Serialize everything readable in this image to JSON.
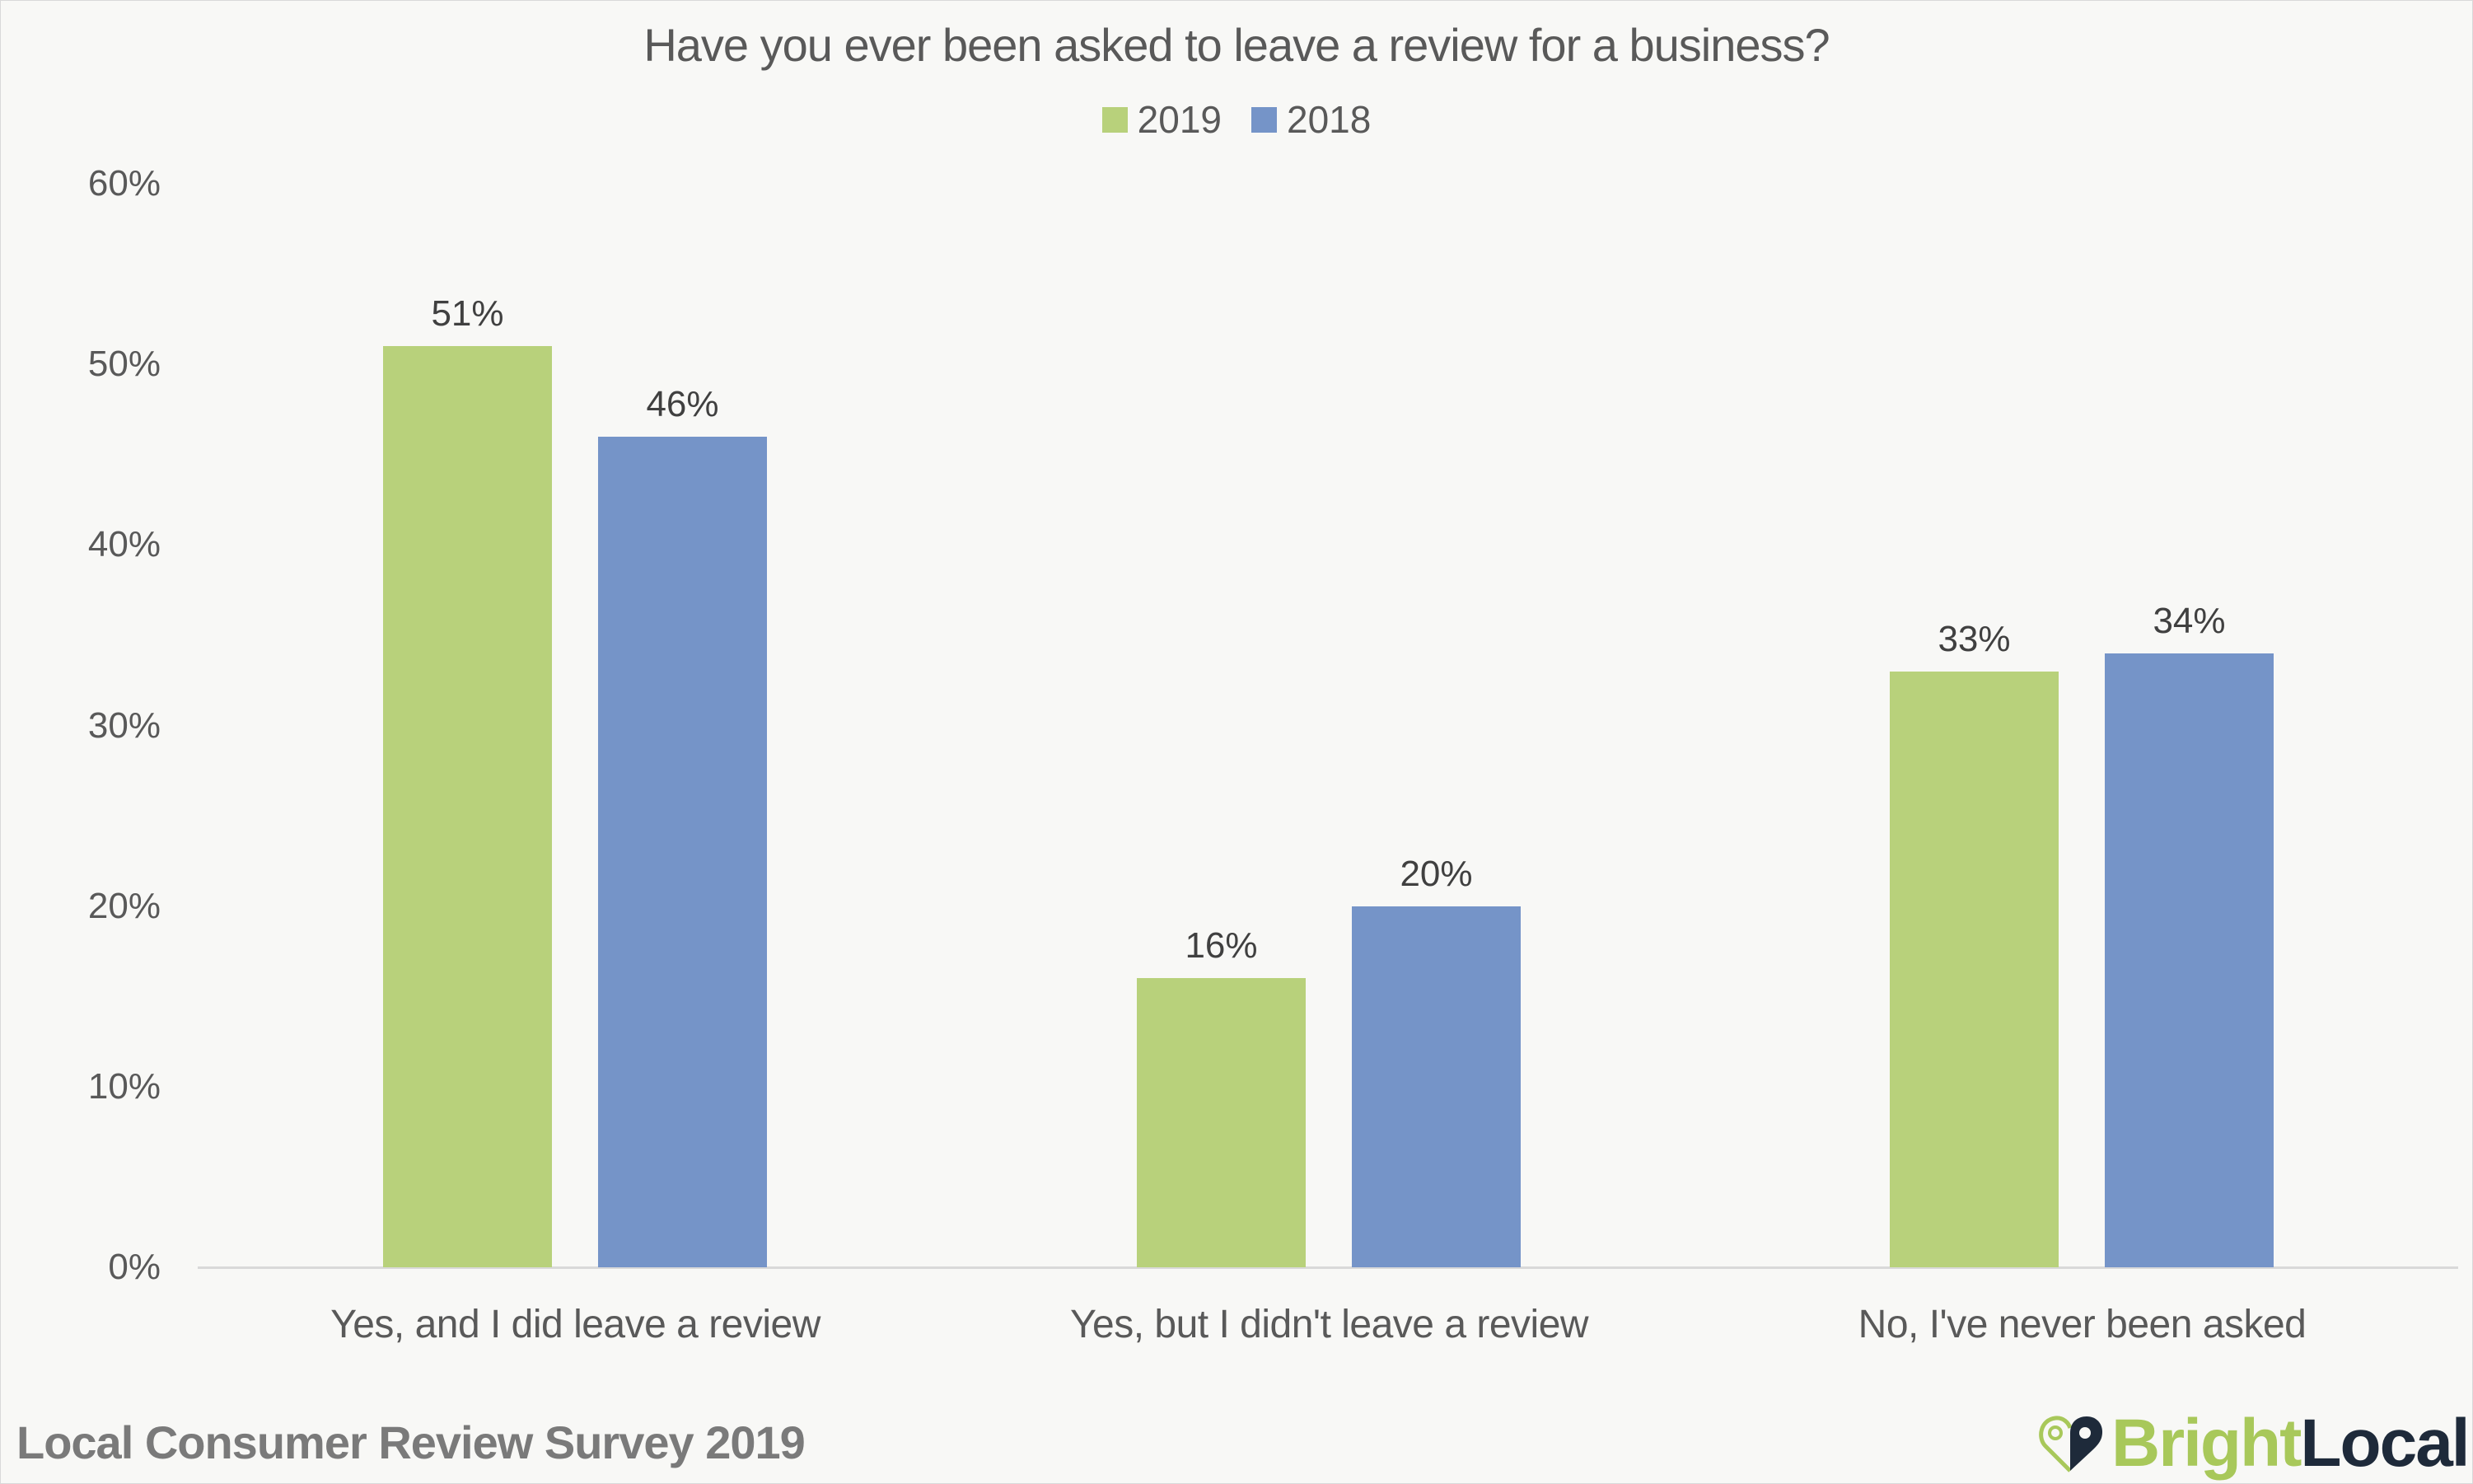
{
  "title": "Have you ever been asked to leave a review for a business?",
  "legend": [
    {
      "label": "2019",
      "color": "#b8d17b"
    },
    {
      "label": "2018",
      "color": "#7594c8"
    }
  ],
  "y_axis": {
    "ticks": [
      "0%",
      "10%",
      "20%",
      "30%",
      "40%",
      "50%",
      "60%"
    ]
  },
  "footer": "Local Consumer Review Survey 2019",
  "logo": {
    "part1": "Bright",
    "part2": "Local",
    "icon": "heart-pin-icon"
  },
  "chart_data": {
    "type": "bar",
    "title": "Have you ever been asked to leave a review for a business?",
    "categories": [
      "Yes, and I did leave a review",
      "Yes, but I didn't leave a review",
      "No, I've never been asked"
    ],
    "series": [
      {
        "name": "2019",
        "color": "#b8d17b",
        "values": [
          51,
          16,
          33
        ],
        "labels": [
          "51%",
          "16%",
          "33%"
        ]
      },
      {
        "name": "2018",
        "color": "#7594c8",
        "values": [
          46,
          20,
          34
        ],
        "labels": [
          "46%",
          "20%",
          "34%"
        ]
      }
    ],
    "xlabel": "",
    "ylabel": "",
    "ylim": [
      0,
      60
    ],
    "yticks": [
      0,
      10,
      20,
      30,
      40,
      50,
      60
    ],
    "ytick_format": "percent",
    "grid": false,
    "legend_position": "top"
  }
}
